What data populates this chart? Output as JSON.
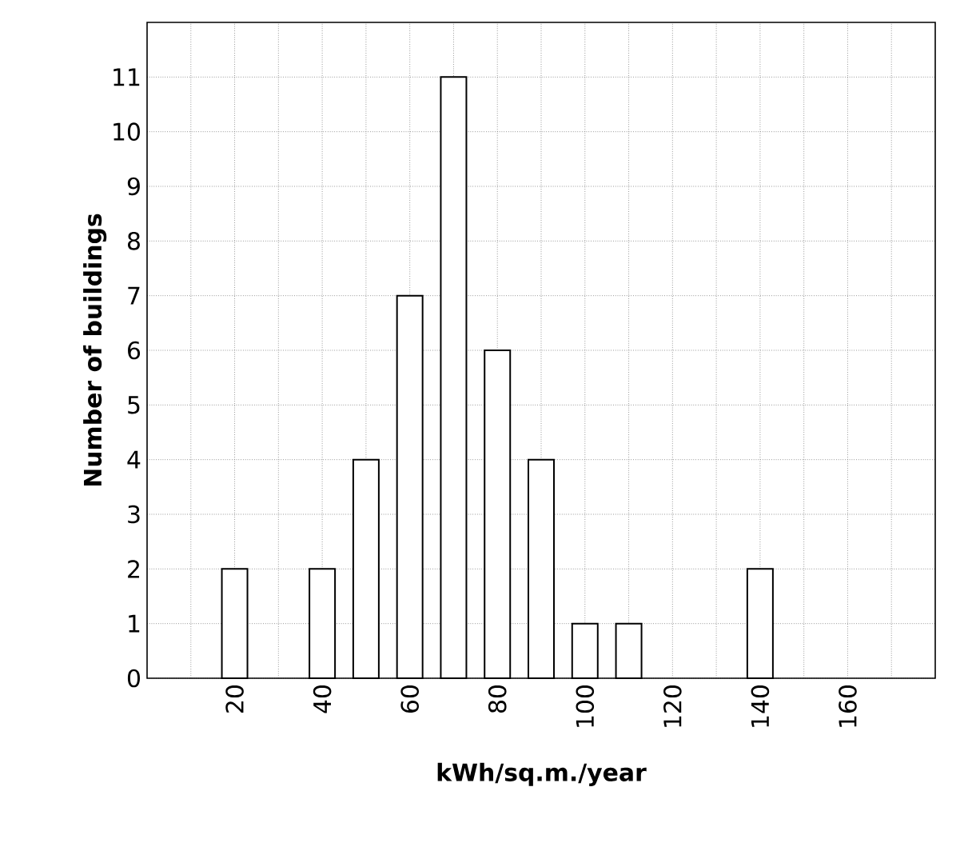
{
  "chart_data": {
    "type": "bar",
    "xlabel": "kWh/sq.m./year",
    "ylabel": "Number of buildings",
    "x": [
      20,
      40,
      50,
      60,
      70,
      80,
      90,
      100,
      110,
      140
    ],
    "values": [
      2,
      2,
      4,
      7,
      11,
      6,
      4,
      1,
      1,
      2
    ],
    "color": "#ffffff",
    "xlim": [
      0,
      180
    ],
    "xticks": [
      {
        "value": 10,
        "label": null
      },
      20,
      {
        "value": 30,
        "label": null
      },
      40,
      {
        "value": 50,
        "label": null
      },
      60,
      {
        "value": 70,
        "label": null
      },
      80,
      {
        "value": 90,
        "label": null
      },
      100,
      {
        "value": 110,
        "label": null
      },
      120,
      {
        "value": 130,
        "label": null
      },
      140,
      {
        "value": 150,
        "label": null
      },
      160,
      {
        "value": 170,
        "label": null
      }
    ],
    "ylim": [
      0,
      12
    ],
    "yticks": [
      0,
      1,
      2,
      3,
      4,
      5,
      6,
      7,
      8,
      9,
      10,
      11
    ],
    "grid": true
  }
}
